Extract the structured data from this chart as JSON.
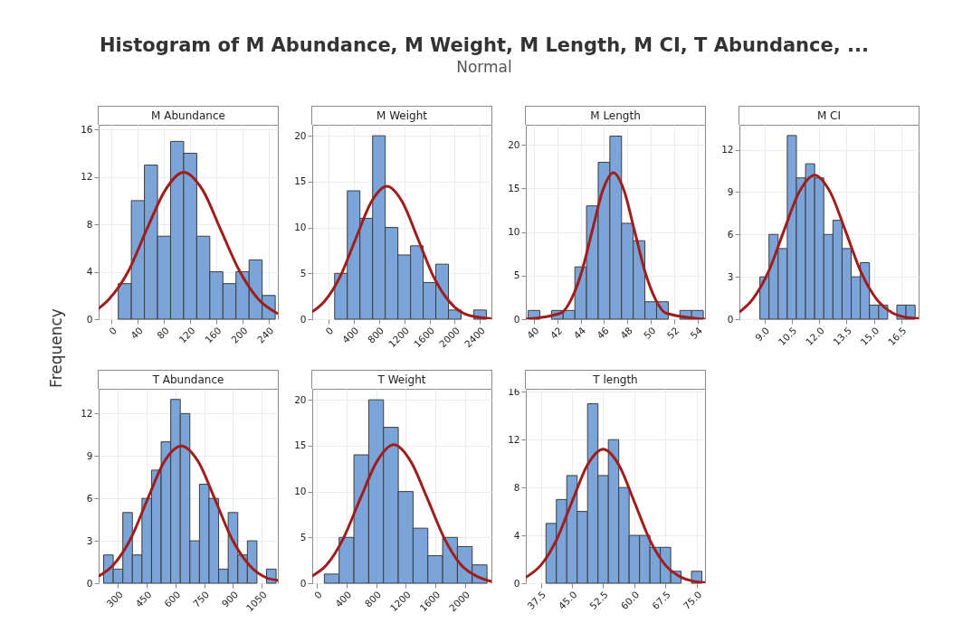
{
  "chart_data": [
    {
      "type": "histogram",
      "title": "M Abundance",
      "ylabel": "Frequency",
      "annotations": [
        "Histogram of M Abundance, M Weight, M Length, M CI, T Abundance, ...",
        "Normal"
      ],
      "bins": [
        10,
        30,
        50,
        70,
        90,
        110,
        130,
        150,
        170,
        190,
        210,
        230,
        250
      ],
      "values": [
        3,
        10,
        13,
        7,
        15,
        14,
        7,
        4,
        3,
        4,
        5,
        2
      ],
      "color": "#7ba4d8",
      "xlim": [
        -20,
        254
      ],
      "xticks": [
        0,
        40,
        80,
        120,
        160,
        200,
        240
      ],
      "ylim": [
        0,
        16.4
      ],
      "yticks": [
        0,
        4,
        8,
        12,
        16
      ],
      "grid": true,
      "series": [
        {
          "type": "line",
          "color": "#a11d1d",
          "x": [
            -20,
            -4,
            25,
            53,
            82,
            110,
            139,
            167,
            196,
            224,
            253
          ],
          "values": [
            0.9,
            1.7,
            4.0,
            7.5,
            10.9,
            12.4,
            10.9,
            7.5,
            4.0,
            1.7,
            0.5
          ]
        }
      ]
    },
    {
      "type": "histogram",
      "title": "M Weight",
      "bins": [
        100,
        300,
        500,
        700,
        900,
        1100,
        1300,
        1500,
        1700,
        1900,
        2100,
        2300,
        2500
      ],
      "values": [
        5,
        14,
        11,
        20,
        10,
        7,
        8,
        4,
        6,
        1,
        0,
        1
      ],
      "color": "#7ba4d8",
      "xlim": [
        -255,
        2580
      ],
      "xticks": [
        0,
        400,
        800,
        1200,
        1600,
        2000,
        2400
      ],
      "ylim": [
        0,
        21.2
      ],
      "yticks": [
        0,
        5,
        10,
        15,
        20
      ],
      "grid": true,
      "series": [
        {
          "type": "line",
          "color": "#a11d1d",
          "x": [
            -255,
            -55,
            190,
            435,
            680,
            925,
            1170,
            1415,
            1660,
            1905,
            2150,
            2395,
            2580
          ],
          "values": [
            0.8,
            2.0,
            4.7,
            8.8,
            12.8,
            14.5,
            12.8,
            8.8,
            4.7,
            2.0,
            0.6,
            0.2,
            0.05
          ]
        }
      ]
    },
    {
      "type": "histogram",
      "title": "M Length",
      "bins": [
        39.5,
        40.5,
        41.5,
        42.5,
        43.5,
        44.5,
        45.5,
        46.5,
        47.5,
        48.5,
        49.5,
        50.5,
        51.5,
        52.5,
        53.5,
        54.5
      ],
      "values": [
        1,
        0,
        1,
        1,
        6,
        13,
        18,
        21,
        11,
        9,
        2,
        2,
        0,
        1,
        1
      ],
      "color": "#7ba4d8",
      "xlim": [
        39.3,
        54.65
      ],
      "xticks": [
        40,
        42,
        44,
        46,
        48,
        50,
        52,
        54
      ],
      "ylim": [
        0,
        22.3
      ],
      "yticks": [
        0,
        5,
        10,
        15,
        20
      ],
      "grid": true,
      "series": [
        {
          "type": "line",
          "color": "#a11d1d",
          "x": [
            39.3,
            42.3,
            43.2,
            44.1,
            45.0,
            45.9,
            46.8,
            47.7,
            48.6,
            49.5,
            50.4,
            51.3,
            54.65
          ],
          "values": [
            0,
            0.7,
            2.3,
            5.5,
            10.2,
            14.8,
            16.8,
            14.8,
            10.2,
            5.5,
            2.3,
            0.7,
            0
          ]
        }
      ]
    },
    {
      "type": "histogram",
      "title": "M CI",
      "bins": [
        8.75,
        9.25,
        9.75,
        10.25,
        10.75,
        11.25,
        11.75,
        12.25,
        12.75,
        13.25,
        13.75,
        14.25,
        14.75,
        15.25,
        15.75,
        16.25,
        16.75,
        17.25
      ],
      "values": [
        3,
        6,
        5,
        13,
        10,
        11,
        10,
        6,
        7,
        5,
        3,
        4,
        1,
        1,
        0,
        1,
        1
      ],
      "color": "#7ba4d8",
      "xlim": [
        7.63,
        17.44
      ],
      "xticks": [
        {
          "value": 9,
          "label": "9.0"
        },
        10.5,
        {
          "value": 12,
          "label": "12.0"
        },
        13.5,
        {
          "value": 15,
          "label": "15.0"
        },
        16.5
      ],
      "ylim": [
        0,
        13.76
      ],
      "yticks": [
        0,
        3,
        6,
        9,
        12
      ],
      "grid": true,
      "series": [
        {
          "type": "line",
          "color": "#a11d1d",
          "x": [
            7.63,
            8.35,
            9.2,
            10.05,
            10.9,
            11.75,
            12.6,
            13.45,
            14.3,
            15.15,
            16.0,
            16.85,
            17.44
          ],
          "values": [
            0.5,
            1.4,
            3.3,
            6.2,
            9.0,
            10.2,
            9.0,
            6.2,
            3.3,
            1.4,
            0.45,
            0.11,
            0.04
          ]
        }
      ]
    },
    {
      "type": "histogram",
      "title": "T Abundance",
      "bins": [
        225,
        275,
        325,
        375,
        425,
        475,
        525,
        575,
        625,
        675,
        725,
        775,
        825,
        875,
        925,
        975,
        1025,
        1075,
        1125
      ],
      "values": [
        2,
        1,
        5,
        2,
        6,
        8,
        10,
        13,
        12,
        3,
        7,
        6,
        1,
        5,
        2,
        3,
        0,
        1
      ],
      "color": "#7ba4d8",
      "xlim": [
        199,
        1134
      ],
      "xticks": [
        300,
        450,
        600,
        750,
        900,
        1050
      ],
      "ylim": [
        0,
        13.75
      ],
      "yticks": [
        0,
        3,
        6,
        9,
        12
      ],
      "grid": true,
      "series": [
        {
          "type": "line",
          "color": "#a11d1d",
          "x": [
            199,
            276,
            364.5,
            453,
            541.5,
            630,
            718.5,
            807,
            895.5,
            984,
            1072.5,
            1134
          ],
          "values": [
            0.5,
            1.3,
            3.1,
            5.9,
            8.6,
            9.7,
            8.6,
            5.9,
            3.1,
            1.3,
            0.4,
            0.2
          ]
        }
      ]
    },
    {
      "type": "histogram",
      "title": "T Weight",
      "bins": [
        100,
        300,
        500,
        700,
        900,
        1100,
        1300,
        1500,
        1700,
        1900,
        2100,
        2300
      ],
      "values": [
        1,
        5,
        14,
        20,
        17,
        10,
        6,
        3,
        5,
        4,
        2
      ],
      "color": "#7ba4d8",
      "xlim": [
        -64,
        2360
      ],
      "xticks": [
        0,
        400,
        800,
        1200,
        1600,
        2000
      ],
      "ylim": [
        0,
        21.2
      ],
      "yticks": [
        0,
        5,
        10,
        15,
        20
      ],
      "grid": true,
      "series": [
        {
          "type": "line",
          "color": "#a11d1d",
          "x": [
            -64,
            130,
            357.5,
            585,
            812.5,
            1040,
            1267.5,
            1495,
            1722.5,
            1950,
            2177.5,
            2360
          ],
          "values": [
            0.8,
            2.0,
            4.9,
            9.2,
            13.3,
            15.1,
            13.3,
            9.2,
            4.9,
            2.0,
            0.7,
            0.2
          ]
        }
      ]
    },
    {
      "type": "histogram",
      "title": "T length",
      "bins": [
        38.75,
        41.25,
        43.75,
        46.25,
        48.75,
        51.25,
        53.75,
        56.25,
        58.75,
        61.25,
        63.75,
        66.25,
        68.75,
        71.25,
        73.75,
        76.25
      ],
      "values": [
        5,
        7,
        9,
        6,
        15,
        9,
        12,
        8,
        4,
        4,
        3,
        3,
        1,
        0,
        1
      ],
      "color": "#7ba4d8",
      "xlim": [
        33.9,
        77
      ],
      "xticks": [
        37.5,
        {
          "value": 45,
          "label": "45.0"
        },
        52.5,
        {
          "value": 60,
          "label": "60.0"
        },
        67.5,
        {
          "value": 75,
          "label": "75.0"
        }
      ],
      "ylim": [
        0,
        16.25
      ],
      "yticks": [
        0,
        4,
        8,
        12,
        16
      ],
      "grid": true,
      "series": [
        {
          "type": "line",
          "color": "#a11d1d",
          "x": [
            33.9,
            37.5,
            41.25,
            45,
            48.75,
            52.5,
            56.25,
            60,
            63.75,
            67.5,
            71.25,
            75,
            77
          ],
          "values": [
            0.5,
            1.5,
            3.6,
            6.8,
            9.9,
            11.2,
            9.9,
            6.8,
            3.6,
            1.5,
            0.5,
            0.12,
            0.05
          ]
        }
      ]
    }
  ]
}
